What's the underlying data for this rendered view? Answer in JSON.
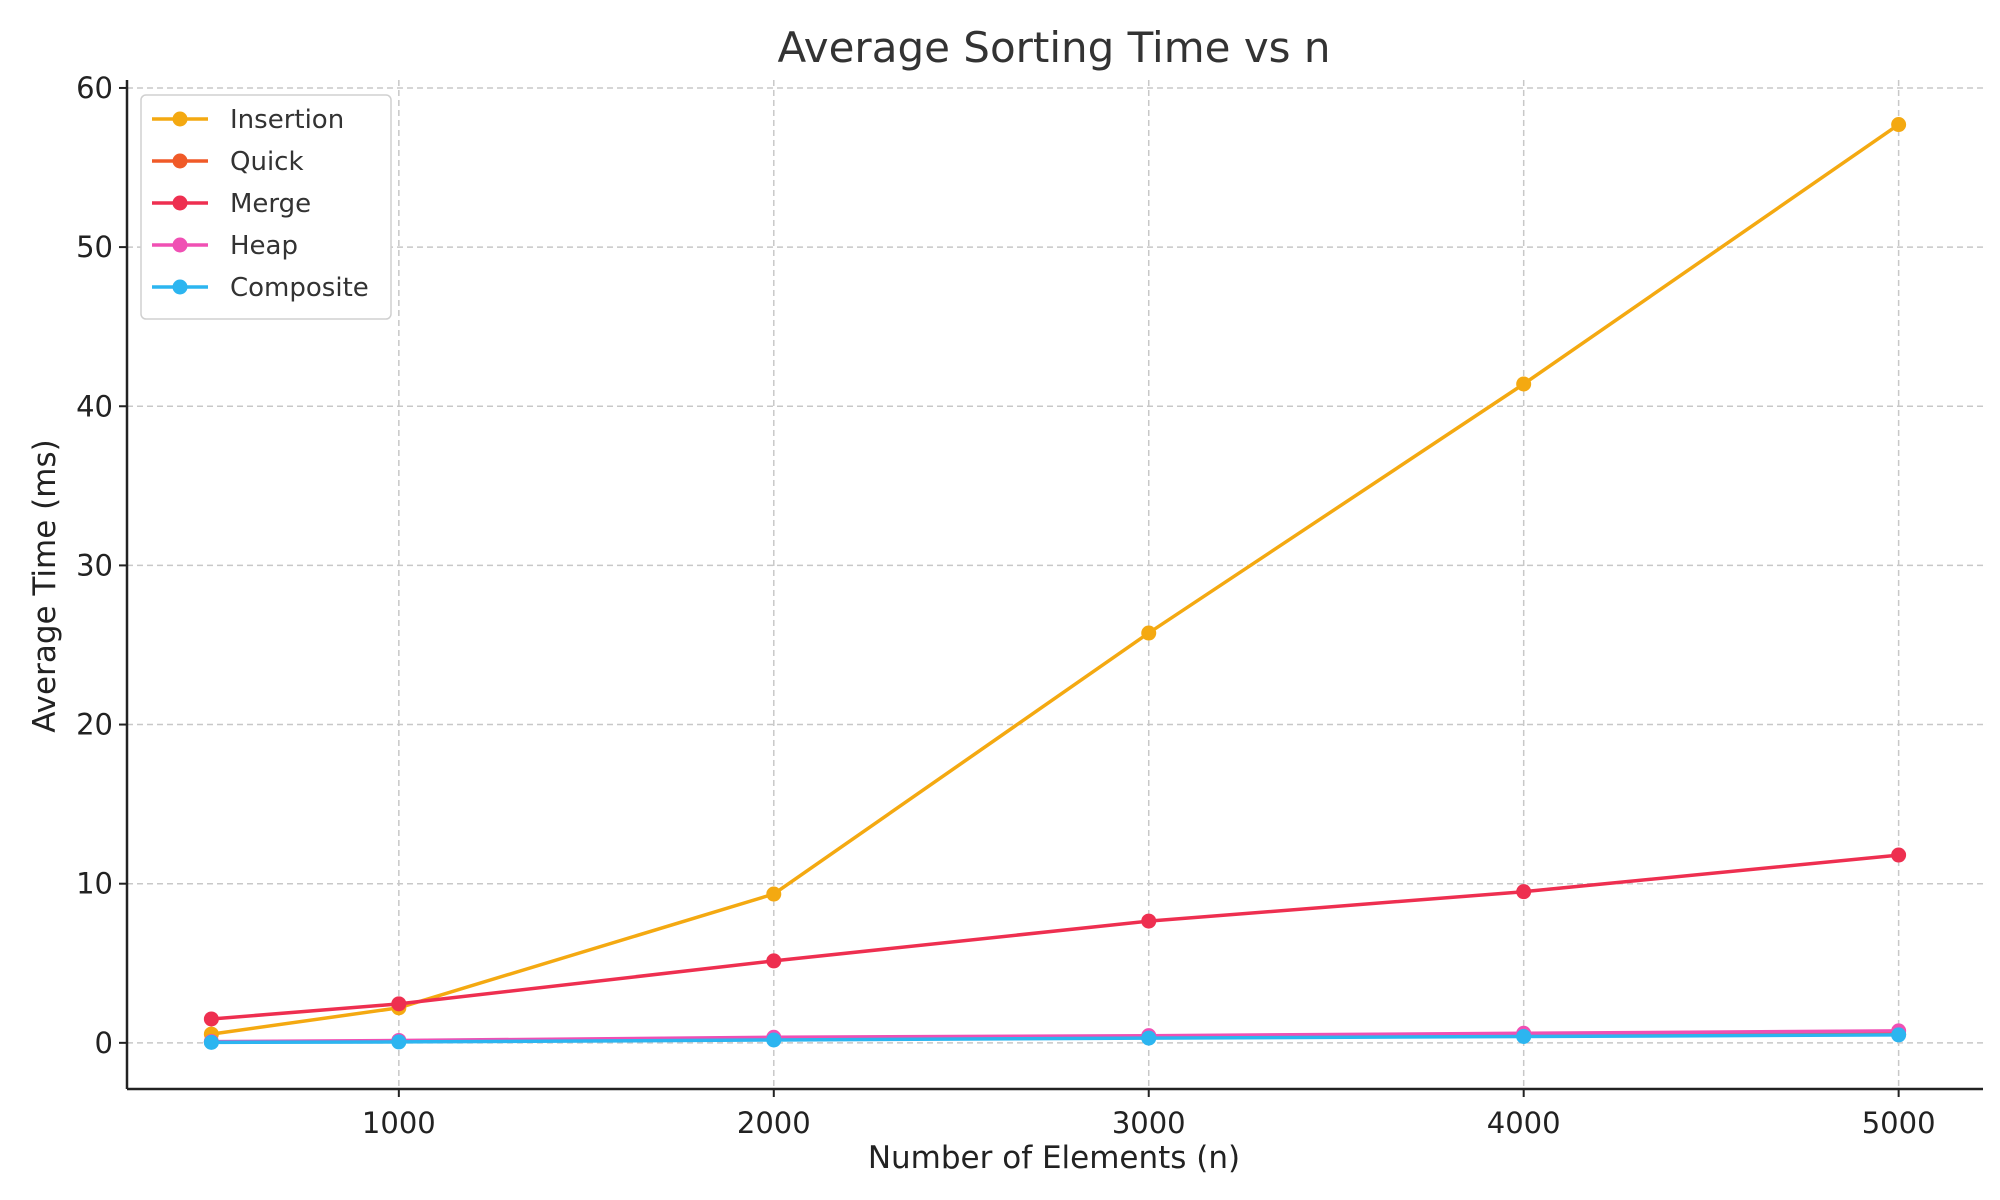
{
  "chart_data": {
    "type": "line",
    "title": "Average Sorting Time vs n",
    "xlabel": "Number of Elements (n)",
    "ylabel": "Average Time (ms)",
    "x": [
      500,
      1000,
      2000,
      3000,
      4000,
      5000
    ],
    "xlim": [
      275,
      5225
    ],
    "ylim": [
      -2.9,
      60.5
    ],
    "xticks": [
      1000,
      2000,
      3000,
      4000,
      5000
    ],
    "yticks": [
      0,
      10,
      20,
      30,
      40,
      50,
      60
    ],
    "grid": true,
    "legend_position": "top-left",
    "series": [
      {
        "name": "Insertion",
        "color": "#f4a911",
        "values": [
          0.55,
          2.2,
          9.35,
          25.75,
          41.4,
          57.7
        ]
      },
      {
        "name": "Quick",
        "color": "#f05a28",
        "values": [
          0.05,
          0.1,
          0.25,
          0.35,
          0.45,
          0.55
        ]
      },
      {
        "name": "Merge",
        "color": "#ee2f50",
        "values": [
          1.5,
          2.45,
          5.15,
          7.65,
          9.5,
          11.8
        ]
      },
      {
        "name": "Heap",
        "color": "#f050b4",
        "values": [
          0.08,
          0.15,
          0.35,
          0.45,
          0.6,
          0.75
        ]
      },
      {
        "name": "Composite",
        "color": "#2cb5f0",
        "values": [
          0.03,
          0.06,
          0.18,
          0.3,
          0.4,
          0.5
        ]
      }
    ]
  }
}
